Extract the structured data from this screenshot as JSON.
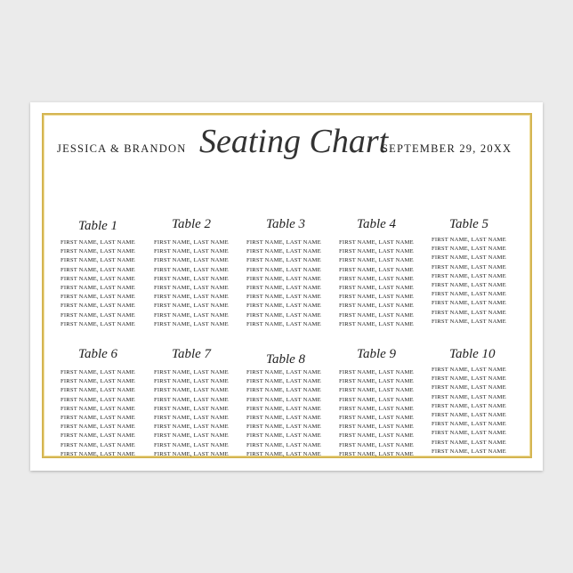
{
  "header": {
    "left": "JESSICA & BRANDON",
    "title": "Seating Chart",
    "right": "SEPTEMBER 29, 20XX"
  },
  "tables": [
    {
      "title": "Table 1",
      "names": [
        "FIRST NAME, LAST NAME",
        "FIRST NAME, LAST NAME",
        "FIRST NAME, LAST NAME",
        "FIRST NAME, LAST NAME",
        "FIRST NAME, LAST NAME",
        "FIRST NAME, LAST NAME",
        "FIRST NAME, LAST NAME",
        "FIRST NAME, LAST NAME",
        "FIRST NAME, LAST NAME",
        "FIRST NAME, LAST NAME"
      ]
    },
    {
      "title": "Table 2",
      "names": [
        "FIRST NAME, LAST NAME",
        "FIRST NAME, LAST NAME",
        "FIRST NAME, LAST NAME",
        "FIRST NAME, LAST NAME",
        "FIRST NAME, LAST NAME",
        "FIRST NAME, LAST NAME",
        "FIRST NAME, LAST NAME",
        "FIRST NAME, LAST NAME",
        "FIRST NAME, LAST NAME",
        "FIRST NAME, LAST NAME"
      ]
    },
    {
      "title": "Table 3",
      "names": [
        "FIRST NAME, LAST NAME",
        "FIRST NAME, LAST NAME",
        "FIRST NAME, LAST NAME",
        "FIRST NAME, LAST NAME",
        "FIRST NAME, LAST NAME",
        "FIRST NAME, LAST NAME",
        "FIRST NAME, LAST NAME",
        "FIRST NAME, LAST NAME",
        "FIRST NAME, LAST NAME",
        "FIRST NAME, LAST NAME"
      ]
    },
    {
      "title": "Table 4",
      "names": [
        "FIRST NAME, LAST NAME",
        "FIRST NAME, LAST NAME",
        "FIRST NAME, LAST NAME",
        "FIRST NAME, LAST NAME",
        "FIRST NAME, LAST NAME",
        "FIRST NAME, LAST NAME",
        "FIRST NAME, LAST NAME",
        "FIRST NAME, LAST NAME",
        "FIRST NAME, LAST NAME",
        "FIRST NAME, LAST NAME"
      ]
    },
    {
      "title": "Table 5",
      "names": [
        "FIRST NAME, LAST NAME",
        "FIRST NAME, LAST NAME",
        "FIRST NAME, LAST NAME",
        "FIRST NAME, LAST NAME",
        "FIRST NAME, LAST NAME",
        "FIRST NAME, LAST NAME",
        "FIRST NAME, LAST NAME",
        "FIRST NAME, LAST NAME",
        "FIRST NAME, LAST NAME",
        "FIRST NAME, LAST NAME"
      ]
    },
    {
      "title": "Table 6",
      "names": [
        "FIRST NAME, LAST NAME",
        "FIRST NAME, LAST NAME",
        "FIRST NAME, LAST NAME",
        "FIRST NAME, LAST NAME",
        "FIRST NAME, LAST NAME",
        "FIRST NAME, LAST NAME",
        "FIRST NAME, LAST NAME",
        "FIRST NAME, LAST NAME",
        "FIRST NAME, LAST NAME",
        "FIRST NAME, LAST NAME"
      ]
    },
    {
      "title": "Table 7",
      "names": [
        "FIRST NAME, LAST NAME",
        "FIRST NAME, LAST NAME",
        "FIRST NAME, LAST NAME",
        "FIRST NAME, LAST NAME",
        "FIRST NAME, LAST NAME",
        "FIRST NAME, LAST NAME",
        "FIRST NAME, LAST NAME",
        "FIRST NAME, LAST NAME",
        "FIRST NAME, LAST NAME",
        "FIRST NAME, LAST NAME"
      ]
    },
    {
      "title": "Table 8",
      "names": [
        "FIRST NAME, LAST NAME",
        "FIRST NAME, LAST NAME",
        "FIRST NAME, LAST NAME",
        "FIRST NAME, LAST NAME",
        "FIRST NAME, LAST NAME",
        "FIRST NAME, LAST NAME",
        "FIRST NAME, LAST NAME",
        "FIRST NAME, LAST NAME",
        "FIRST NAME, LAST NAME",
        "FIRST NAME, LAST NAME"
      ]
    },
    {
      "title": "Table 9",
      "names": [
        "FIRST NAME, LAST NAME",
        "FIRST NAME, LAST NAME",
        "FIRST NAME, LAST NAME",
        "FIRST NAME, LAST NAME",
        "FIRST NAME, LAST NAME",
        "FIRST NAME, LAST NAME",
        "FIRST NAME, LAST NAME",
        "FIRST NAME, LAST NAME",
        "FIRST NAME, LAST NAME",
        "FIRST NAME, LAST NAME"
      ]
    },
    {
      "title": "Table 10",
      "names": [
        "FIRST NAME, LAST NAME",
        "FIRST NAME, LAST NAME",
        "FIRST NAME, LAST NAME",
        "FIRST NAME, LAST NAME",
        "FIRST NAME, LAST NAME",
        "FIRST NAME, LAST NAME",
        "FIRST NAME, LAST NAME",
        "FIRST NAME, LAST NAME",
        "FIRST NAME, LAST NAME",
        "FIRST NAME, LAST NAME"
      ]
    }
  ]
}
